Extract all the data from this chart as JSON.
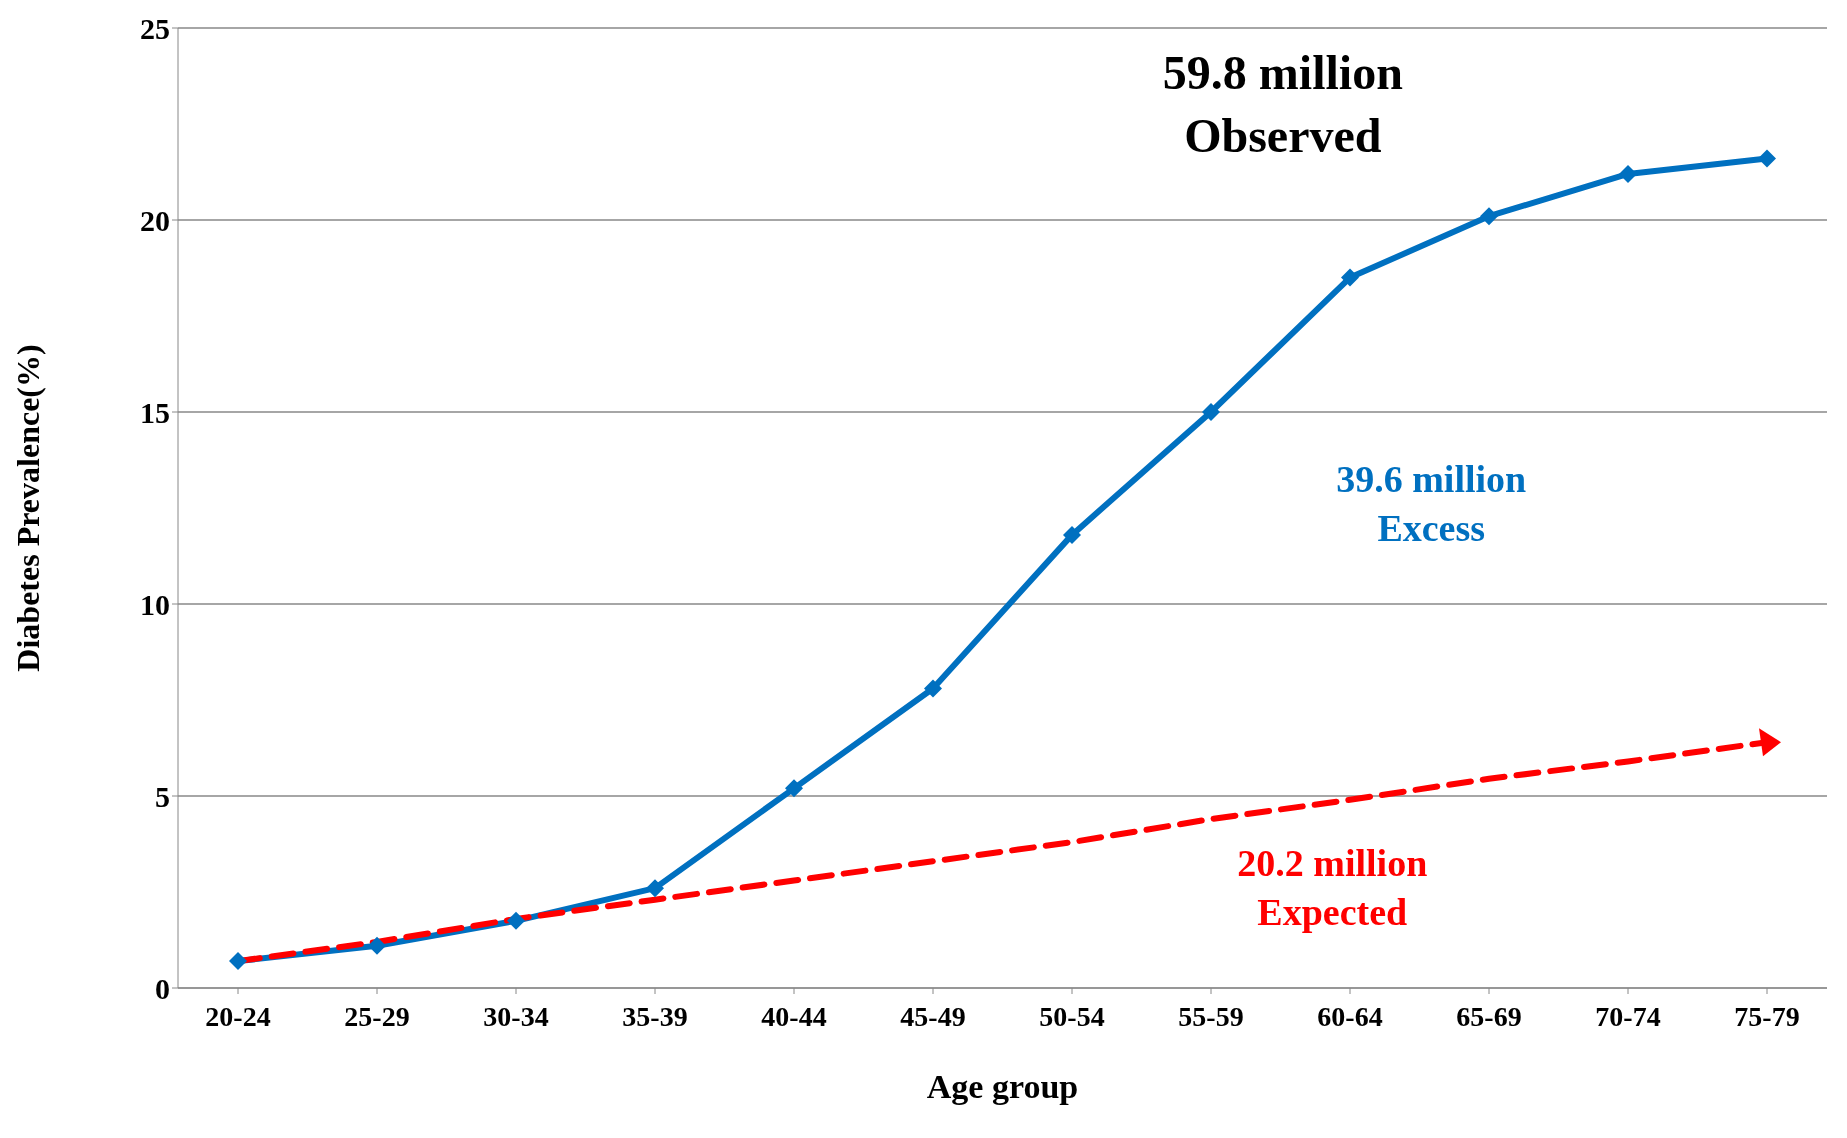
{
  "chart_data": {
    "type": "line",
    "xlabel": "Age group",
    "ylabel": "Diabetes Prevalence(%)",
    "categories": [
      "20-24",
      "25-29",
      "30-34",
      "35-39",
      "40-44",
      "45-49",
      "50-54",
      "55-59",
      "60-64",
      "65-69",
      "70-74",
      "75-79"
    ],
    "series": [
      {
        "color": "#0070c0",
        "marker": "diamond",
        "line_style": "solid",
        "values": [
          0.7,
          1.1,
          1.75,
          2.6,
          5.2,
          7.8,
          11.8,
          15.0,
          18.5,
          20.1,
          21.2,
          21.6
        ]
      },
      {
        "color": "#ff0000",
        "marker": "none",
        "line_style": "dashed",
        "values": [
          0.7,
          1.2,
          1.8,
          2.3,
          2.8,
          3.3,
          3.8,
          4.4,
          4.9,
          5.45,
          5.9,
          6.4
        ]
      }
    ],
    "ylim": [
      0,
      25
    ],
    "yticks": [
      0,
      5,
      10,
      15,
      20,
      25
    ],
    "grid": "y",
    "legend": false,
    "annotations": [
      "59.8 million\nObserved",
      "39.6 million\nExcess",
      "20.2 million\nExpected"
    ]
  }
}
